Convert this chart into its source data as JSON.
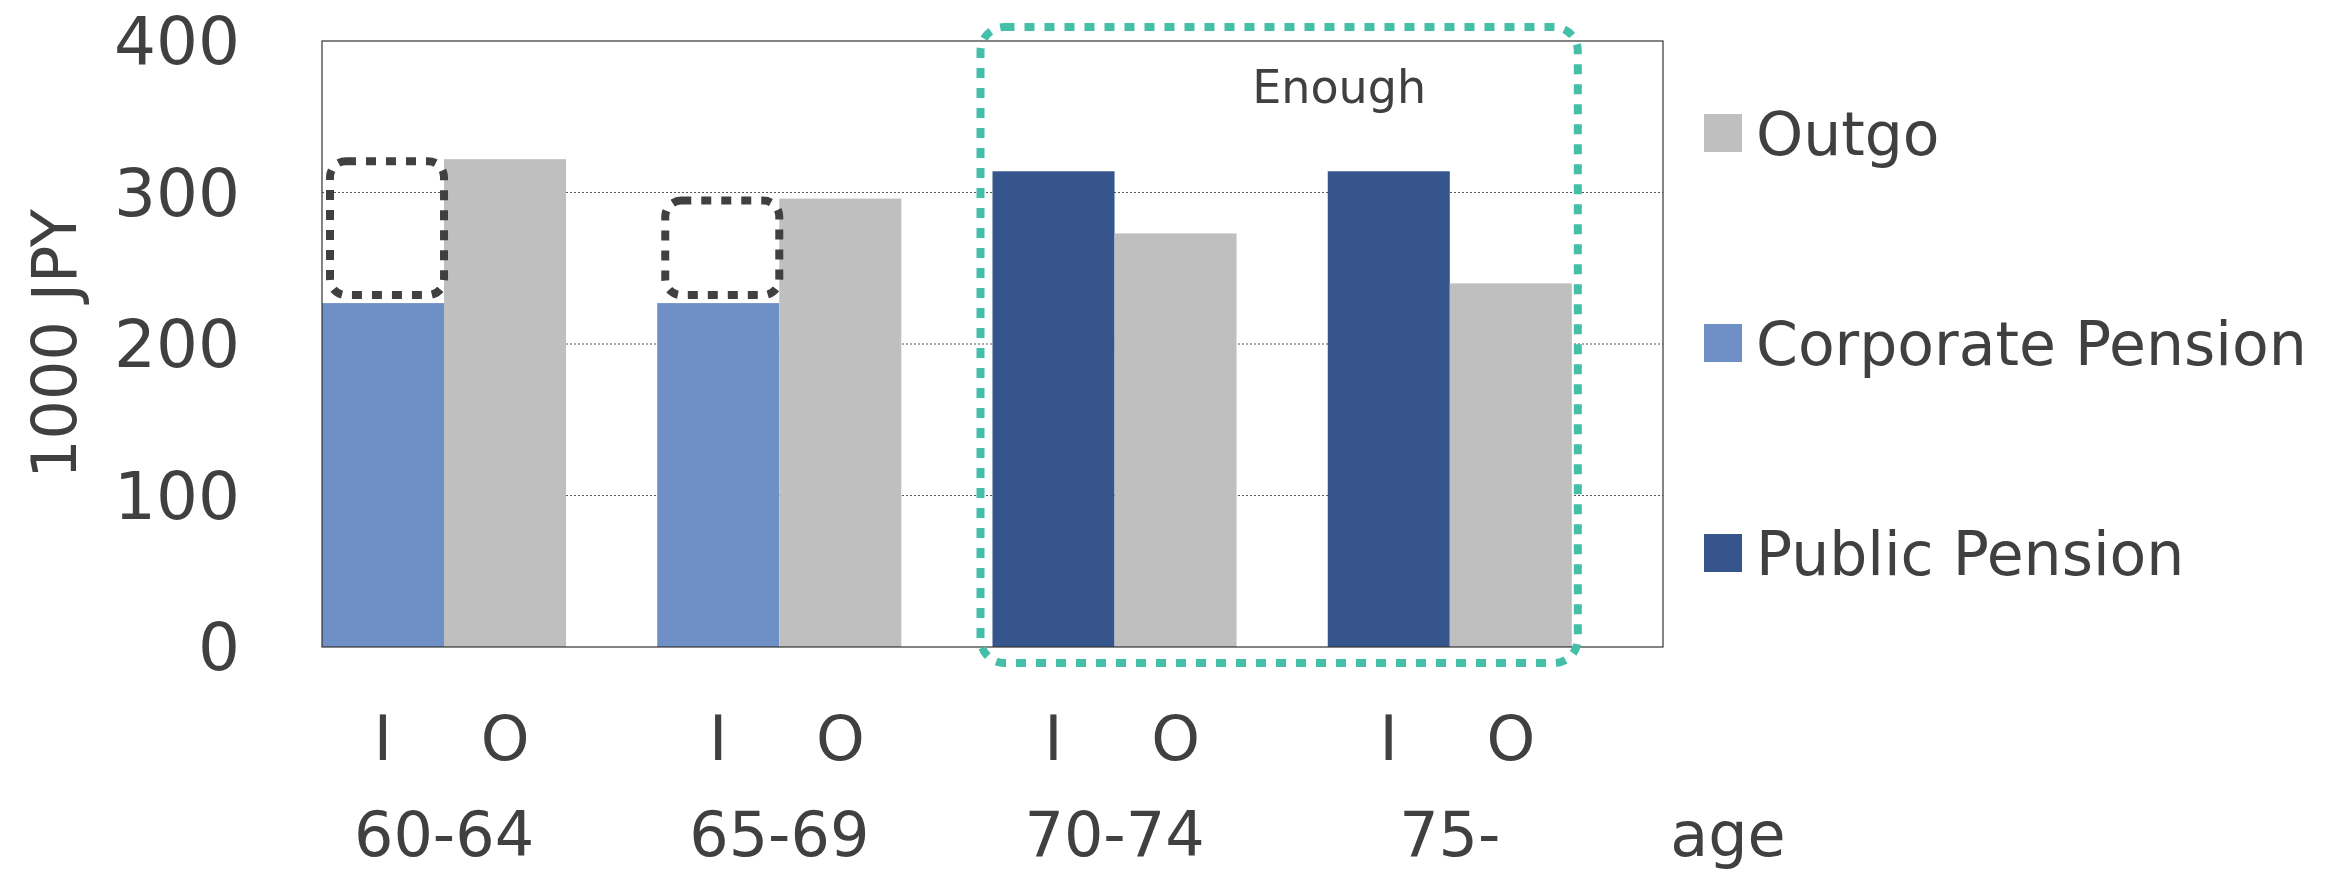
{
  "chart_data": {
    "type": "bar",
    "ylabel": "1000 JPY",
    "xlabel": "age",
    "categories": [
      "I",
      "O",
      "I",
      "O",
      "I",
      "O",
      "I",
      "O"
    ],
    "stacked": true,
    "series": [
      {
        "name": "Public Pension",
        "color": "#35558c",
        "values": [
          null,
          null,
          null,
          null,
          314,
          null,
          314,
          null
        ]
      },
      {
        "name": "Corporate Pension",
        "color": "#6f8fc7",
        "values": [
          227,
          null,
          227,
          null,
          null,
          null,
          null,
          null
        ]
      },
      {
        "name": "Outgo",
        "color": "#bfbfbf",
        "values": [
          null,
          322,
          null,
          296,
          null,
          273,
          null,
          240
        ]
      }
    ],
    "annotations": [
      "60-64",
      "65-69",
      "70-74",
      "75-",
      "Enough"
    ],
    "ylim": [
      0,
      400
    ],
    "yticks": [
      0,
      100,
      200,
      300,
      400
    ],
    "grid": "y",
    "legend": "right"
  }
}
